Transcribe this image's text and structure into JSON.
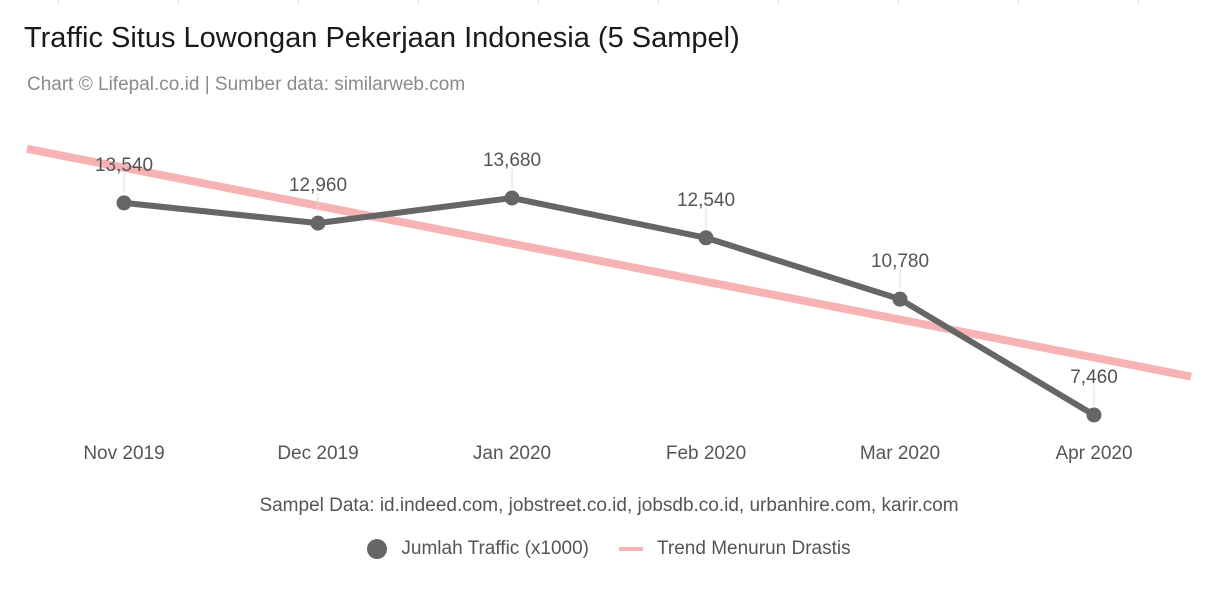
{
  "title": "Traffic Situs Lowongan Pekerjaan Indonesia (5 Sampel)",
  "subtitle": "Chart © Lifepal.co.id | Sumber data: similarweb.com",
  "footnote": "Sampel Data: id.indeed.com, jobstreet.co.id, jobsdb.co.id, urbanhire.com, karir.com",
  "legend": {
    "series": "Jumlah Traffic (x1000)",
    "trend": "Trend Menurun Drastis"
  },
  "colors": {
    "series": "#666666",
    "trend": "#f7b3b3",
    "labels": "#555555"
  },
  "chart_data": {
    "type": "line",
    "categories": [
      "Nov 2019",
      "Dec 2019",
      "Jan 2020",
      "Feb 2020",
      "Mar 2020",
      "Apr 2020"
    ],
    "series": [
      {
        "name": "Jumlah Traffic (x1000)",
        "values": [
          13540,
          12960,
          13680,
          12540,
          10780,
          7460
        ],
        "data_labels": [
          "13,540",
          "12,960",
          "13,680",
          "12,540",
          "10,780",
          "7,460"
        ]
      },
      {
        "name": "Trend Menurun Drastis",
        "kind": "trendline"
      }
    ],
    "legend_position": "bottom",
    "grid": false
  }
}
